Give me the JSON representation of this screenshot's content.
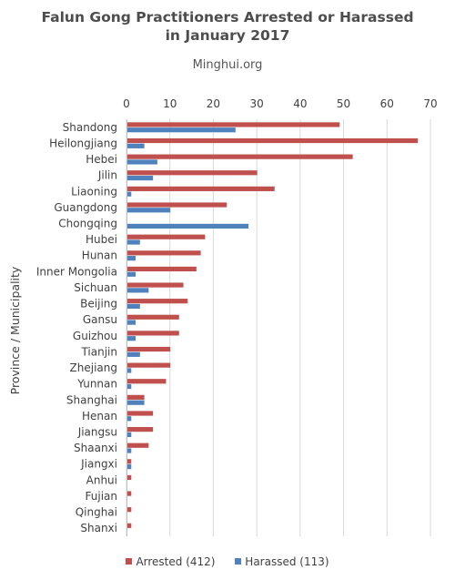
{
  "chart_data": {
    "type": "bar",
    "orientation": "horizontal",
    "title_line1": "Falun Gong Practitioners Arrested or Harassed",
    "title_line2": "in January 2017",
    "subtitle": "Minghui.org",
    "xlabel": "",
    "ylabel": "Province / Municipality",
    "xlim": [
      0,
      70
    ],
    "xticks": [
      0,
      10,
      20,
      30,
      40,
      50,
      60,
      70
    ],
    "grid": true,
    "legend_position": "bottom",
    "categories": [
      "Shandong",
      "Heilongjiang",
      "Hebei",
      "Jilin",
      "Liaoning",
      "Guangdong",
      "Chongqing",
      "Hubei",
      "Hunan",
      "Inner Mongolia",
      "Sichuan",
      "Beijing",
      "Gansu",
      "Guizhou",
      "Tianjin",
      "Zhejiang",
      "Yunnan",
      "Shanghai",
      "Henan",
      "Jiangsu",
      "Shaanxi",
      "Jiangxi",
      "Anhui",
      "Fujian",
      "Qinghai",
      "Shanxi"
    ],
    "series": [
      {
        "name": "Arrested (412)",
        "color": "#c0504d",
        "values": [
          49,
          67,
          52,
          30,
          34,
          23,
          0,
          18,
          17,
          16,
          13,
          14,
          12,
          12,
          10,
          10,
          9,
          4,
          6,
          6,
          5,
          1,
          1,
          1,
          1,
          1
        ]
      },
      {
        "name": "Harassed (113)",
        "color": "#4f81bd",
        "values": [
          25,
          4,
          7,
          6,
          1,
          10,
          28,
          3,
          2,
          2,
          5,
          3,
          2,
          2,
          3,
          1,
          1,
          4,
          1,
          1,
          1,
          1,
          0,
          0,
          0,
          0
        ]
      }
    ]
  }
}
